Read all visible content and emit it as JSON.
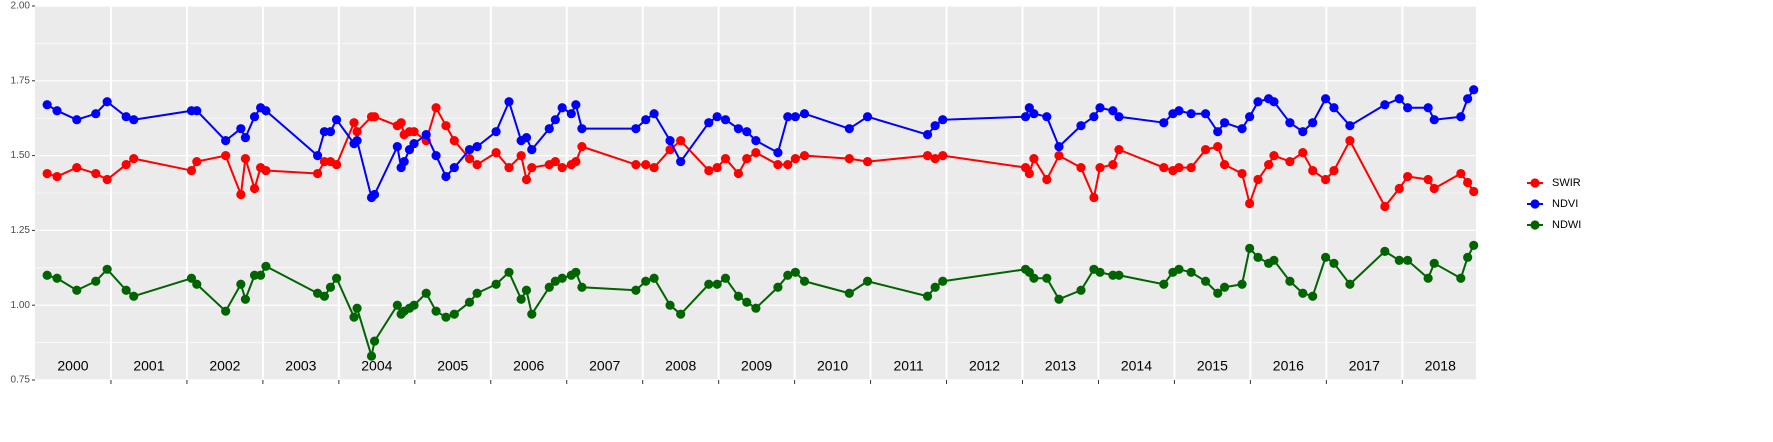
{
  "chart_data": {
    "type": "line",
    "x": [
      2000.16,
      2000.29,
      2000.55,
      2000.8,
      2000.95,
      2001.2,
      2001.3,
      2002.06,
      2002.13,
      2002.51,
      2002.71,
      2002.77,
      2002.89,
      2002.97,
      2003.04,
      2003.72,
      2003.81,
      2003.89,
      2003.97,
      2004.2,
      2004.24,
      2004.43,
      2004.47,
      2004.77,
      2004.82,
      2004.86,
      2004.93,
      2004.99,
      2005.15,
      2005.28,
      2005.41,
      2005.52,
      2005.72,
      2005.82,
      2006.07,
      2006.24,
      2006.4,
      2006.47,
      2006.54,
      2006.77,
      2006.85,
      2006.94,
      2007.06,
      2007.12,
      2007.2,
      2007.91,
      2008.04,
      2008.15,
      2008.36,
      2008.5,
      2008.87,
      2008.98,
      2009.09,
      2009.26,
      2009.37,
      2009.49,
      2009.78,
      2009.91,
      2010.01,
      2010.13,
      2010.72,
      2010.96,
      2011.75,
      2011.85,
      2011.95,
      2013.04,
      2013.09,
      2013.15,
      2013.32,
      2013.48,
      2013.77,
      2013.94,
      2014.02,
      2014.19,
      2014.27,
      2014.86,
      2014.98,
      2015.06,
      2015.22,
      2015.41,
      2015.57,
      2015.66,
      2015.89,
      2015.99,
      2016.1,
      2016.24,
      2016.31,
      2016.52,
      2016.69,
      2016.82,
      2016.99,
      2017.1,
      2017.31,
      2017.77,
      2017.96,
      2018.07,
      2018.34,
      2018.42,
      2018.77,
      2018.86,
      2018.94
    ],
    "series": [
      {
        "name": "SWIR",
        "color": "#ff0000",
        "values": [
          1.44,
          1.43,
          1.46,
          1.44,
          1.42,
          1.47,
          1.49,
          1.45,
          1.48,
          1.5,
          1.37,
          1.49,
          1.39,
          1.46,
          1.45,
          1.44,
          1.48,
          1.48,
          1.47,
          1.61,
          1.58,
          1.63,
          1.63,
          1.6,
          1.61,
          1.57,
          1.58,
          1.58,
          1.55,
          1.66,
          1.6,
          1.55,
          1.49,
          1.47,
          1.51,
          1.46,
          1.5,
          1.42,
          1.46,
          1.47,
          1.48,
          1.46,
          1.47,
          1.48,
          1.53,
          1.47,
          1.47,
          1.46,
          1.52,
          1.55,
          1.45,
          1.46,
          1.49,
          1.44,
          1.49,
          1.51,
          1.47,
          1.47,
          1.49,
          1.5,
          1.49,
          1.48,
          1.5,
          1.49,
          1.5,
          1.46,
          1.44,
          1.49,
          1.42,
          1.5,
          1.46,
          1.36,
          1.46,
          1.47,
          1.52,
          1.46,
          1.45,
          1.46,
          1.46,
          1.52,
          1.53,
          1.47,
          1.44,
          1.34,
          1.42,
          1.47,
          1.5,
          1.48,
          1.51,
          1.45,
          1.42,
          1.45,
          1.55,
          1.33,
          1.39,
          1.43,
          1.42,
          1.39,
          1.44,
          1.41,
          1.38
        ]
      },
      {
        "name": "NDVI",
        "color": "#0000ff",
        "values": [
          1.67,
          1.65,
          1.62,
          1.64,
          1.68,
          1.63,
          1.62,
          1.65,
          1.65,
          1.55,
          1.59,
          1.56,
          1.63,
          1.66,
          1.65,
          1.5,
          1.58,
          1.58,
          1.62,
          1.54,
          1.55,
          1.36,
          1.37,
          1.53,
          1.46,
          1.48,
          1.52,
          1.54,
          1.57,
          1.5,
          1.43,
          1.46,
          1.52,
          1.53,
          1.58,
          1.68,
          1.55,
          1.56,
          1.52,
          1.59,
          1.62,
          1.66,
          1.64,
          1.67,
          1.59,
          1.59,
          1.62,
          1.64,
          1.55,
          1.48,
          1.61,
          1.63,
          1.62,
          1.59,
          1.58,
          1.55,
          1.51,
          1.63,
          1.63,
          1.64,
          1.59,
          1.63,
          1.57,
          1.6,
          1.62,
          1.63,
          1.66,
          1.64,
          1.63,
          1.53,
          1.6,
          1.63,
          1.66,
          1.65,
          1.63,
          1.61,
          1.64,
          1.65,
          1.64,
          1.64,
          1.58,
          1.61,
          1.59,
          1.63,
          1.68,
          1.69,
          1.68,
          1.61,
          1.58,
          1.61,
          1.69,
          1.66,
          1.6,
          1.67,
          1.69,
          1.66,
          1.66,
          1.62,
          1.63,
          1.69,
          1.72
        ]
      },
      {
        "name": "NDWI",
        "color": "#006400",
        "values": [
          1.1,
          1.09,
          1.05,
          1.08,
          1.12,
          1.05,
          1.03,
          1.09,
          1.07,
          0.98,
          1.07,
          1.02,
          1.1,
          1.1,
          1.13,
          1.04,
          1.03,
          1.06,
          1.09,
          0.96,
          0.99,
          0.83,
          0.88,
          1.0,
          0.97,
          0.98,
          0.99,
          1.0,
          1.04,
          0.98,
          0.96,
          0.97,
          1.01,
          1.04,
          1.07,
          1.11,
          1.02,
          1.05,
          0.97,
          1.06,
          1.08,
          1.09,
          1.1,
          1.11,
          1.06,
          1.05,
          1.08,
          1.09,
          1.0,
          0.97,
          1.07,
          1.07,
          1.09,
          1.03,
          1.01,
          0.99,
          1.06,
          1.1,
          1.11,
          1.08,
          1.04,
          1.08,
          1.03,
          1.06,
          1.08,
          1.12,
          1.11,
          1.09,
          1.09,
          1.02,
          1.05,
          1.12,
          1.11,
          1.1,
          1.1,
          1.07,
          1.11,
          1.12,
          1.11,
          1.08,
          1.04,
          1.06,
          1.07,
          1.19,
          1.16,
          1.14,
          1.15,
          1.08,
          1.04,
          1.03,
          1.16,
          1.14,
          1.07,
          1.18,
          1.15,
          1.15,
          1.09,
          1.14,
          1.09,
          1.16,
          1.2
        ]
      }
    ],
    "xlim": [
      2000.0,
      2018.97
    ],
    "xticks": [
      2001,
      2002,
      2003,
      2004,
      2005,
      2006,
      2007,
      2008,
      2009,
      2010,
      2011,
      2012,
      2013,
      2014,
      2015,
      2016,
      2017,
      2018
    ],
    "ylim": [
      0.75,
      2.0
    ],
    "yticks": [
      {
        "value": 0.75,
        "label": "0.75"
      },
      {
        "value": 1.0,
        "label": "1.00"
      },
      {
        "value": 1.25,
        "label": "1.25"
      },
      {
        "value": 1.5,
        "label": "1.50"
      },
      {
        "value": 1.75,
        "label": "1.75"
      },
      {
        "value": 2.0,
        "label": "2.00"
      }
    ],
    "year_labels": [
      "2000",
      "2001",
      "2002",
      "2003",
      "2004",
      "2005",
      "2006",
      "2007",
      "2008",
      "2009",
      "2010",
      "2011",
      "2012",
      "2013",
      "2014",
      "2015",
      "2016",
      "2017",
      "2018"
    ],
    "grid": true,
    "legend_position": "right"
  }
}
